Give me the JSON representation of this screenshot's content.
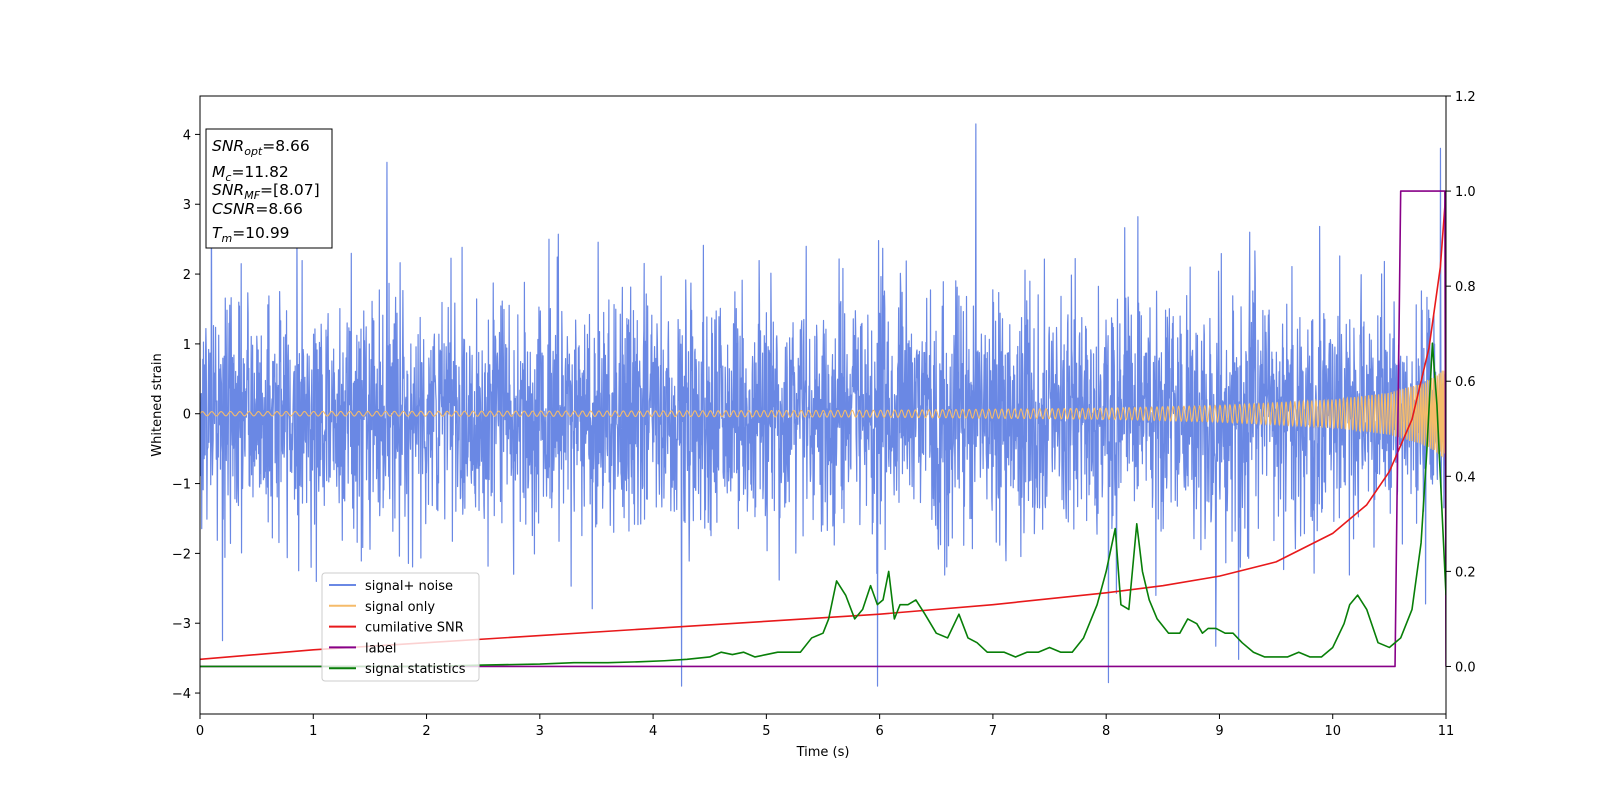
{
  "chart_data": {
    "type": "line",
    "title": "",
    "xlabel": "Time (s)",
    "ylabel": "Whitened strain",
    "xlim": [
      0,
      11
    ],
    "ylim": [
      -4.3,
      4.55
    ],
    "y2lim": [
      -0.1,
      1.2
    ],
    "x_ticks": [
      "0",
      "1",
      "2",
      "3",
      "4",
      "5",
      "6",
      "7",
      "8",
      "9",
      "10",
      "11"
    ],
    "y_ticks": [
      "−4",
      "−3",
      "−2",
      "−1",
      "0",
      "1",
      "2",
      "3",
      "4"
    ],
    "y2_ticks": [
      "0.0",
      "0.2",
      "0.4",
      "0.6",
      "0.8",
      "1.0",
      "1.2"
    ],
    "grid": false,
    "legend_position": "lower-left",
    "info_box": [
      {
        "sym": "SNR",
        "sub": "opt",
        "rest": "=8.66"
      },
      {
        "sym": "M",
        "sub": "c",
        "rest": "=11.82"
      },
      {
        "sym": "SNR",
        "sub": "MF",
        "rest": "=[8.07]"
      },
      {
        "sym": "CSNR",
        "sub": "",
        "rest": "=8.66"
      },
      {
        "sym": "T",
        "sub": "m",
        "rest": "=10.99"
      }
    ],
    "series": [
      {
        "name": "signal+ noise",
        "color": "#6a88e4",
        "axis": "left",
        "kind": "noise",
        "sigma": 0.85,
        "peaks": [
          [
            6.85,
            4.15
          ],
          [
            1.65,
            3.6
          ],
          [
            0.1,
            3.15
          ],
          [
            10.95,
            3.8
          ],
          [
            4.25,
            -3.9
          ],
          [
            5.98,
            -3.9
          ],
          [
            8.02,
            -3.85
          ],
          [
            0.2,
            -3.25
          ]
        ]
      },
      {
        "name": "signal only",
        "color": "#f5bb6a",
        "axis": "left",
        "kind": "chirp",
        "x": [
          0,
          2,
          4,
          6,
          8,
          9,
          10,
          10.5,
          10.8,
          10.95,
          11
        ],
        "envelope": [
          0.03,
          0.035,
          0.04,
          0.05,
          0.08,
          0.12,
          0.2,
          0.3,
          0.45,
          0.6,
          0.65
        ]
      },
      {
        "name": "cumilative SNR",
        "color": "#e8191b",
        "axis": "right",
        "x": [
          0,
          1,
          2,
          3,
          4,
          5,
          6,
          7,
          8,
          8.5,
          9,
          9.5,
          10,
          10.3,
          10.5,
          10.7,
          10.85,
          10.95,
          11
        ],
        "values": [
          0.015,
          0.035,
          0.05,
          0.065,
          0.08,
          0.095,
          0.11,
          0.13,
          0.155,
          0.17,
          0.19,
          0.22,
          0.28,
          0.34,
          0.41,
          0.52,
          0.67,
          0.84,
          1.0
        ]
      },
      {
        "name": "label",
        "color": "#880088",
        "axis": "right",
        "x": [
          0,
          10.55,
          10.6,
          10.99,
          11
        ],
        "values": [
          0.0,
          0.0,
          1.0,
          1.0,
          0.0
        ]
      },
      {
        "name": "signal statistics",
        "color": "#087f08",
        "axis": "right",
        "x": [
          0,
          2,
          2.5,
          3,
          3.3,
          3.6,
          3.9,
          4.1,
          4.3,
          4.5,
          4.6,
          4.7,
          4.8,
          4.9,
          5.0,
          5.1,
          5.2,
          5.3,
          5.4,
          5.5,
          5.55,
          5.62,
          5.7,
          5.78,
          5.85,
          5.92,
          5.98,
          6.03,
          6.08,
          6.13,
          6.18,
          6.25,
          6.32,
          6.4,
          6.5,
          6.6,
          6.7,
          6.78,
          6.86,
          6.95,
          7.1,
          7.2,
          7.3,
          7.4,
          7.5,
          7.6,
          7.7,
          7.8,
          7.92,
          8.0,
          8.08,
          8.13,
          8.2,
          8.27,
          8.32,
          8.38,
          8.45,
          8.55,
          8.65,
          8.72,
          8.8,
          8.85,
          8.9,
          8.97,
          9.05,
          9.12,
          9.2,
          9.3,
          9.4,
          9.5,
          9.6,
          9.7,
          9.8,
          9.9,
          10.0,
          10.1,
          10.15,
          10.22,
          10.3,
          10.4,
          10.5,
          10.6,
          10.7,
          10.78,
          10.83,
          10.88,
          10.92,
          10.97,
          11.0
        ],
        "values": [
          0.0,
          0.0,
          0.003,
          0.005,
          0.008,
          0.008,
          0.01,
          0.012,
          0.015,
          0.02,
          0.03,
          0.025,
          0.03,
          0.02,
          0.025,
          0.03,
          0.03,
          0.03,
          0.06,
          0.07,
          0.1,
          0.18,
          0.15,
          0.1,
          0.12,
          0.17,
          0.13,
          0.14,
          0.2,
          0.1,
          0.13,
          0.13,
          0.14,
          0.11,
          0.07,
          0.06,
          0.11,
          0.06,
          0.05,
          0.03,
          0.03,
          0.02,
          0.03,
          0.03,
          0.04,
          0.03,
          0.03,
          0.06,
          0.13,
          0.2,
          0.29,
          0.13,
          0.12,
          0.3,
          0.2,
          0.14,
          0.1,
          0.07,
          0.07,
          0.1,
          0.09,
          0.07,
          0.08,
          0.08,
          0.07,
          0.07,
          0.05,
          0.03,
          0.02,
          0.02,
          0.02,
          0.03,
          0.02,
          0.02,
          0.04,
          0.09,
          0.13,
          0.15,
          0.12,
          0.05,
          0.04,
          0.06,
          0.12,
          0.26,
          0.45,
          0.68,
          0.55,
          0.3,
          0.15
        ]
      }
    ]
  }
}
